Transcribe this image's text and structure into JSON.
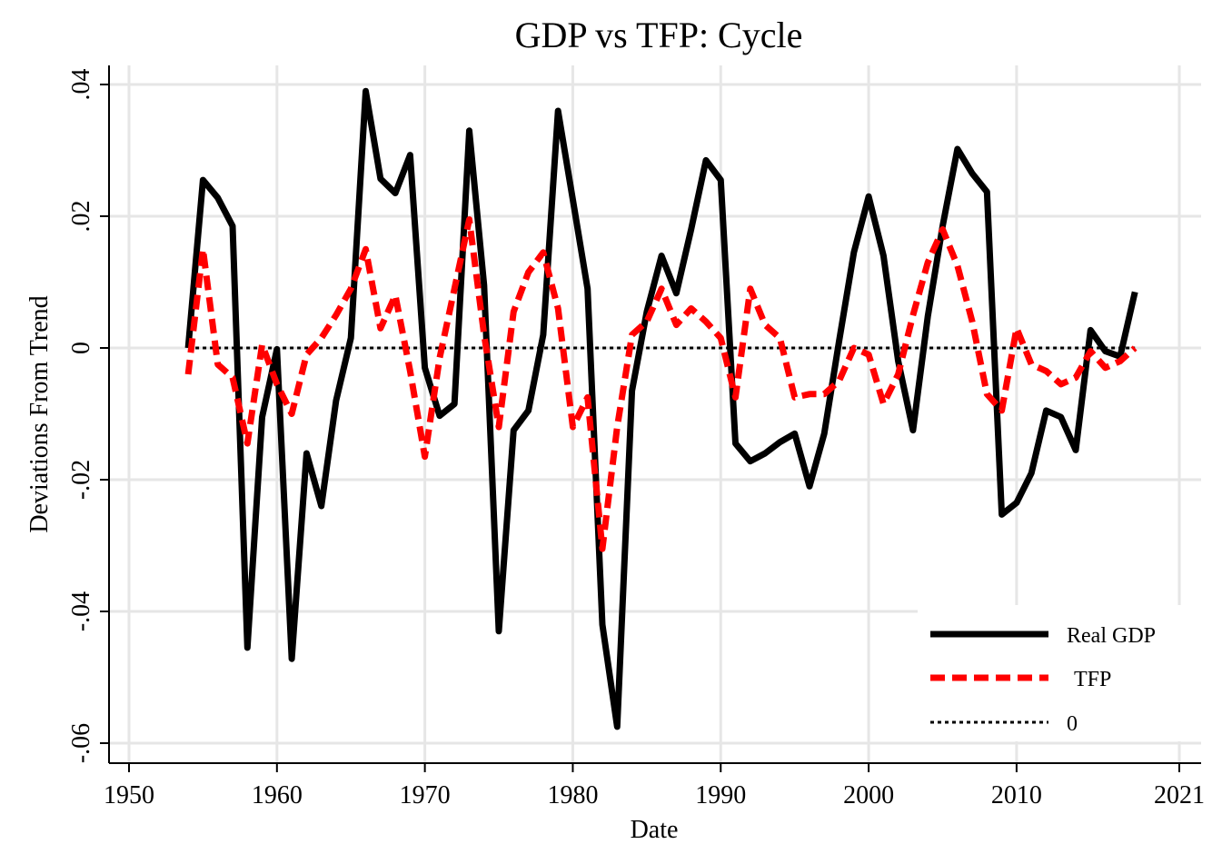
{
  "chart_data": {
    "type": "line",
    "title": "GDP vs TFP: Cycle",
    "xlabel": "Date",
    "ylabel": "Deviations From Trend",
    "xlim": [
      1950,
      2021
    ],
    "ylim": [
      -0.06,
      0.04
    ],
    "x_ticks": [
      1950,
      1960,
      1970,
      1980,
      1990,
      2000,
      2010,
      2021
    ],
    "y_ticks": [
      -0.06,
      -0.04,
      -0.02,
      0,
      0.02,
      0.04
    ],
    "y_tick_labels": [
      "-.06",
      "-.04",
      "-.02",
      "0",
      ".02",
      ".04"
    ],
    "grid": true,
    "legend_position": "bottom-right",
    "x": [
      1954,
      1955,
      1956,
      1957,
      1958,
      1959,
      1960,
      1961,
      1962,
      1963,
      1964,
      1965,
      1966,
      1967,
      1968,
      1969,
      1970,
      1971,
      1972,
      1973,
      1974,
      1975,
      1976,
      1977,
      1978,
      1979,
      1980,
      1981,
      1982,
      1983,
      1984,
      1985,
      1986,
      1987,
      1988,
      1989,
      1990,
      1991,
      1992,
      1993,
      1994,
      1995,
      1996,
      1997,
      1998,
      1999,
      2000,
      2001,
      2002,
      2003,
      2004,
      2005,
      2006,
      2007,
      2008,
      2009,
      2010,
      2011,
      2012,
      2013,
      2014,
      2015,
      2016,
      2017,
      2018
    ],
    "series": [
      {
        "name": "Real GDP",
        "color": "#000000",
        "style": "solid",
        "values": [
          0.0,
          0.0255,
          0.0228,
          0.0185,
          -0.0455,
          -0.0105,
          -0.0002,
          -0.0472,
          -0.016,
          -0.024,
          -0.008,
          0.0015,
          0.039,
          0.0257,
          0.0235,
          0.0293,
          -0.003,
          -0.0103,
          -0.0085,
          0.033,
          0.0095,
          -0.043,
          -0.0125,
          -0.0095,
          0.002,
          0.036,
          0.0225,
          0.009,
          -0.042,
          -0.0575,
          -0.0065,
          0.0055,
          0.014,
          0.0083,
          0.018,
          0.0285,
          0.0255,
          -0.0145,
          -0.0172,
          -0.016,
          -0.0143,
          -0.013,
          -0.021,
          -0.013,
          0.001,
          0.0145,
          0.023,
          0.014,
          -0.002,
          -0.0125,
          0.0048,
          0.0185,
          0.0302,
          0.0265,
          0.0237,
          -0.0253,
          -0.0235,
          -0.019,
          -0.0095,
          -0.0105,
          -0.0155,
          0.0027,
          -0.0005,
          -0.0013,
          0.0085
        ]
      },
      {
        "name": "TFP",
        "color": "#ff0000",
        "style": "dashed",
        "values": [
          -0.004,
          0.015,
          -0.0025,
          -0.0045,
          -0.0145,
          0.0005,
          -0.0055,
          -0.01,
          -0.001,
          0.0015,
          0.005,
          0.009,
          0.015,
          0.003,
          0.008,
          -0.0035,
          -0.0165,
          -0.0015,
          0.009,
          0.0195,
          0.002,
          -0.012,
          0.0055,
          0.0115,
          0.0145,
          0.006,
          -0.012,
          -0.0075,
          -0.0305,
          -0.012,
          0.002,
          0.004,
          0.009,
          0.0035,
          0.006,
          0.004,
          0.0015,
          -0.0075,
          0.009,
          0.0035,
          0.0015,
          -0.0075,
          -0.007,
          -0.007,
          -0.005,
          0.0,
          -0.001,
          -0.0085,
          -0.004,
          0.005,
          0.013,
          0.018,
          0.0125,
          0.004,
          -0.007,
          -0.0095,
          0.003,
          -0.0025,
          -0.0035,
          -0.0055,
          -0.0045,
          -0.0005,
          -0.003,
          -0.002,
          0.0
        ]
      },
      {
        "name": "0",
        "color": "#000000",
        "style": "dotted",
        "values": [
          0,
          0,
          0,
          0,
          0,
          0,
          0,
          0,
          0,
          0,
          0,
          0,
          0,
          0,
          0,
          0,
          0,
          0,
          0,
          0,
          0,
          0,
          0,
          0,
          0,
          0,
          0,
          0,
          0,
          0,
          0,
          0,
          0,
          0,
          0,
          0,
          0,
          0,
          0,
          0,
          0,
          0,
          0,
          0,
          0,
          0,
          0,
          0,
          0,
          0,
          0,
          0,
          0,
          0,
          0,
          0,
          0,
          0,
          0,
          0,
          0,
          0,
          0,
          0,
          0
        ]
      }
    ],
    "legend": [
      "Real GDP",
      "TFP",
      "0"
    ]
  }
}
